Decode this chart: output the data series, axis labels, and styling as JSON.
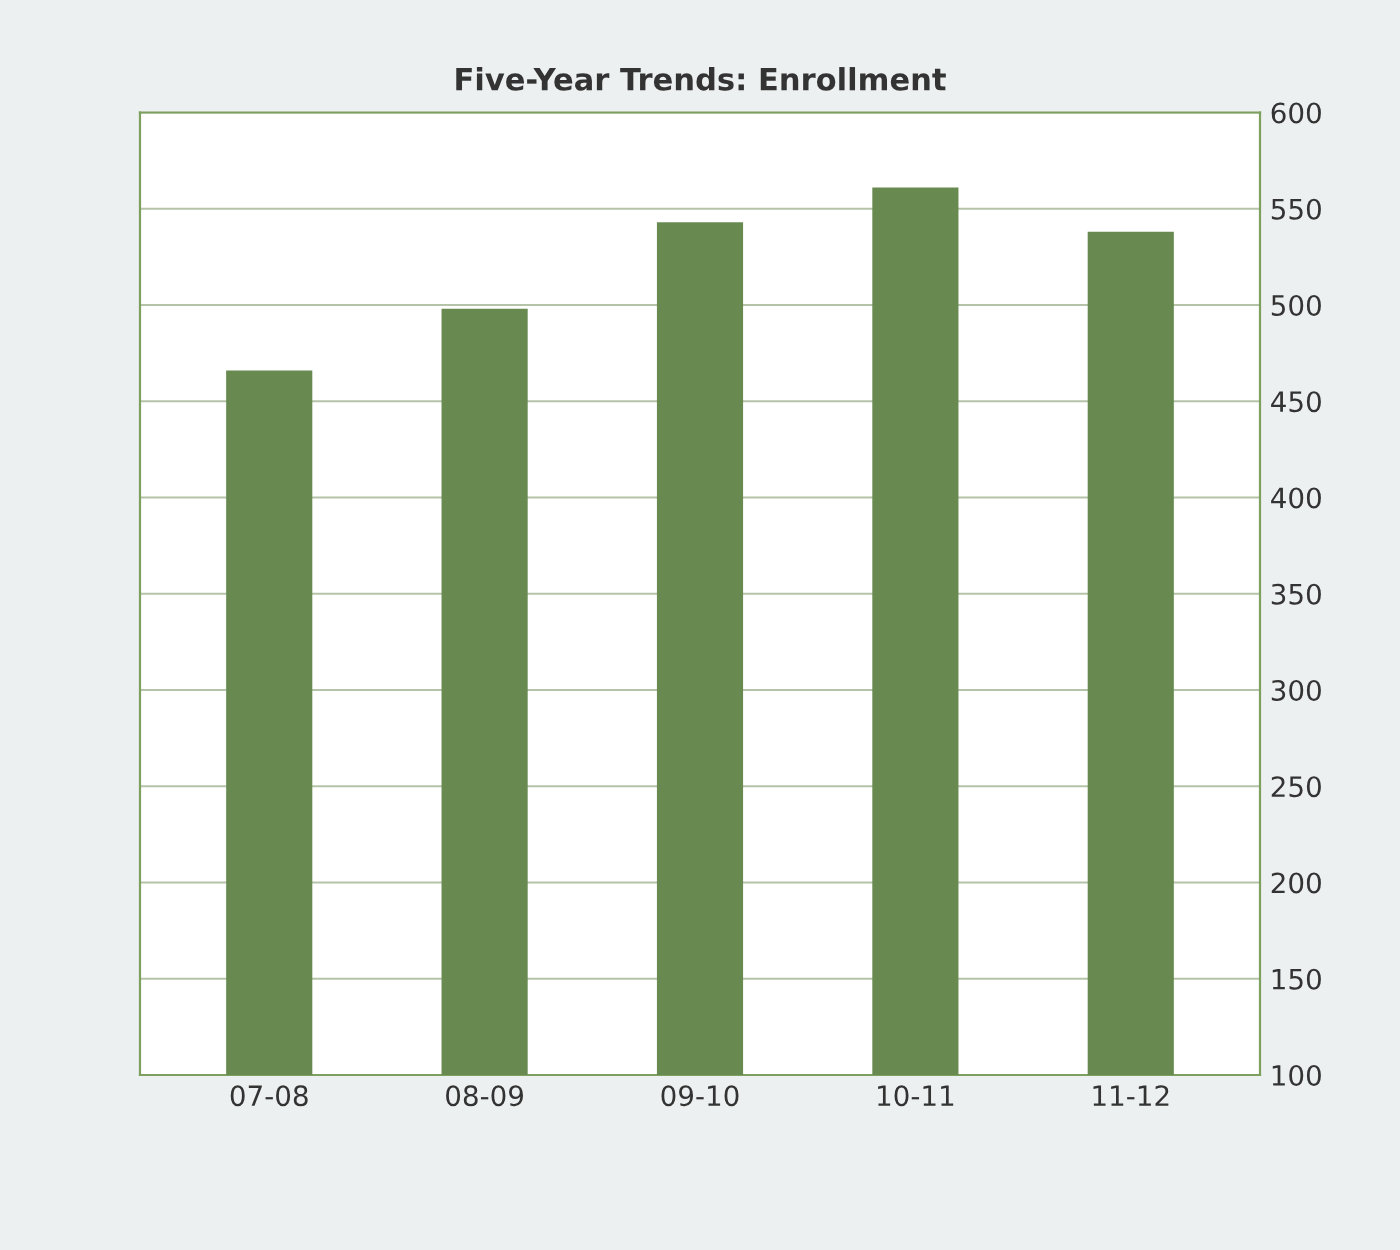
{
  "chart_data": {
    "type": "bar",
    "title": "Five-Year Trends: Enrollment",
    "categories": [
      "07-08",
      "08-09",
      "09-10",
      "10-11",
      "11-12"
    ],
    "values": [
      466,
      498,
      543,
      561,
      538
    ],
    "color": "#688a51",
    "ylim": [
      100,
      600
    ],
    "yticks": [
      100,
      150,
      200,
      250,
      300,
      350,
      400,
      450,
      500,
      550,
      600
    ],
    "grid": "y"
  }
}
